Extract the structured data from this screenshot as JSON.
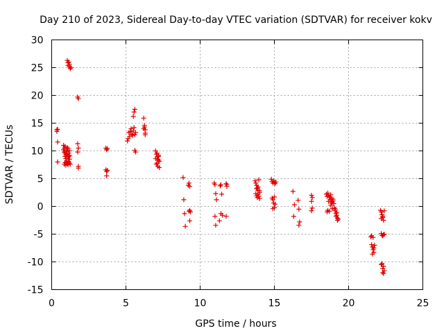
{
  "chart_data": {
    "type": "scatter",
    "title": "Day 210 of 2023, Sidereal Day-to-day VTEC variation (SDTVAR) for receiver kokv",
    "xlabel": "GPS time / hours",
    "ylabel": "SDTVAR / TECUs",
    "xlim": [
      0,
      25
    ],
    "ylim": [
      -15,
      30
    ],
    "xticks": [
      0,
      5,
      10,
      15,
      20,
      25
    ],
    "yticks": [
      -15,
      -10,
      -5,
      0,
      5,
      10,
      15,
      20,
      25,
      30
    ],
    "grid": true,
    "marker": "+",
    "color": "#e00000",
    "series": [
      {
        "name": "SDTVAR",
        "x": [
          0.35,
          0.35,
          0.4,
          0.4,
          0.4,
          0.8,
          0.8,
          0.85,
          0.85,
          0.9,
          0.9,
          0.9,
          0.95,
          0.95,
          1.0,
          1.0,
          1.0,
          1.05,
          1.05,
          1.1,
          1.1,
          1.1,
          1.15,
          1.15,
          1.2,
          1.2,
          1.2,
          0.85,
          0.9,
          0.95,
          1.0,
          1.05,
          1.1,
          1.15,
          1.2,
          1.25,
          1.05,
          1.1,
          1.1,
          1.15,
          1.2,
          1.2,
          1.25,
          1.3,
          1.75,
          1.8,
          1.75,
          1.8,
          1.75,
          1.8,
          1.8,
          3.65,
          3.7,
          3.75,
          3.65,
          3.7,
          3.75,
          3.7,
          5.1,
          5.15,
          5.2,
          5.25,
          5.3,
          5.35,
          5.4,
          5.45,
          5.5,
          5.55,
          5.6,
          5.65,
          5.5,
          5.55,
          5.6,
          5.6,
          5.65,
          6.2,
          6.25,
          6.3,
          6.25,
          6.3,
          6.2,
          6.3,
          7.0,
          7.05,
          7.1,
          7.15,
          7.2,
          7.25,
          7.0,
          7.1,
          7.2,
          7.05,
          7.15,
          7.25,
          7.1,
          7.2,
          8.85,
          8.9,
          8.95,
          9.0,
          9.2,
          9.25,
          9.3,
          9.25,
          9.3,
          9.35,
          9.3,
          10.95,
          11.0,
          11.05,
          11.1,
          11.0,
          11.05,
          11.35,
          11.4,
          11.45,
          11.3,
          11.5,
          11.4,
          11.75,
          11.8,
          11.75,
          11.8,
          13.7,
          13.75,
          13.8,
          13.85,
          13.9,
          13.95,
          14.0,
          13.75,
          13.8,
          13.85,
          13.9,
          13.95,
          14.0,
          13.8,
          13.9,
          14.0,
          14.8,
          14.85,
          14.9,
          14.95,
          15.0,
          15.05,
          15.1,
          14.85,
          14.9,
          14.95,
          15.0,
          15.05,
          14.9,
          15.0,
          16.25,
          16.3,
          16.35,
          16.6,
          16.65,
          16.7,
          16.65,
          17.5,
          17.55,
          17.5,
          17.55,
          17.5,
          18.5,
          18.55,
          18.6,
          18.65,
          18.7,
          18.75,
          18.8,
          18.85,
          18.9,
          18.95,
          19.0,
          18.6,
          18.7,
          18.8,
          18.9,
          18.65,
          18.75,
          18.85,
          18.55,
          18.95,
          19.05,
          19.1,
          19.15,
          19.2,
          19.25,
          19.3,
          19.1,
          19.2,
          19.15,
          19.25,
          21.5,
          21.55,
          21.6,
          21.65,
          21.7,
          21.75,
          21.6,
          21.7,
          21.55,
          21.65,
          22.15,
          22.2,
          22.25,
          22.3,
          22.35,
          22.4,
          22.2,
          22.3,
          22.25,
          22.35,
          22.2,
          22.3,
          22.4,
          22.25,
          22.35,
          22.2,
          22.3,
          22.4,
          22.3,
          22.35
        ],
        "y": [
          13.8,
          13.5,
          11.6,
          8.0,
          13.9,
          11.0,
          10.2,
          9.8,
          10.5,
          9.0,
          9.6,
          10.8,
          9.3,
          8.6,
          10.1,
          9.4,
          8.2,
          9.9,
          10.6,
          9.1,
          8.8,
          10.4,
          9.6,
          9.0,
          8.5,
          10.0,
          9.2,
          7.6,
          7.9,
          7.4,
          8.0,
          7.7,
          7.5,
          8.1,
          7.8,
          7.6,
          26.3,
          25.9,
          25.4,
          26.0,
          25.2,
          25.6,
          24.8,
          25.0,
          19.7,
          19.4,
          11.3,
          10.5,
          9.8,
          7.2,
          6.9,
          10.5,
          10.2,
          10.4,
          6.6,
          6.3,
          6.5,
          5.5,
          11.8,
          12.2,
          13.3,
          12.6,
          13.5,
          14.0,
          13.0,
          12.8,
          13.6,
          14.2,
          12.9,
          13.3,
          16.2,
          17.0,
          17.5,
          10.1,
          9.8,
          15.9,
          14.6,
          13.8,
          14.3,
          13.2,
          14.0,
          12.9,
          10.0,
          9.4,
          8.9,
          8.5,
          9.2,
          8.1,
          8.6,
          7.8,
          8.3,
          7.6,
          7.2,
          7.0,
          9.6,
          9.0,
          5.2,
          1.2,
          -1.3,
          -3.6,
          3.8,
          4.2,
          3.6,
          -0.9,
          -0.7,
          -1.0,
          -2.6,
          4.2,
          3.9,
          2.3,
          1.2,
          -1.8,
          -3.4,
          3.7,
          3.9,
          2.2,
          -2.6,
          -1.6,
          -1.3,
          4.1,
          3.6,
          -1.8,
          3.9,
          4.6,
          4.2,
          3.8,
          3.3,
          2.9,
          4.8,
          2.5,
          2.3,
          1.9,
          1.6,
          2.2,
          1.8,
          2.8,
          3.2,
          3.5,
          1.4,
          4.9,
          4.5,
          4.2,
          4.6,
          4.3,
          4.1,
          4.4,
          1.5,
          1.2,
          0.6,
          -0.2,
          0.4,
          -0.4,
          1.7,
          2.7,
          -1.8,
          0.3,
          1.1,
          -0.5,
          -2.8,
          -3.4,
          2.0,
          1.6,
          0.9,
          -0.3,
          -0.8,
          2.2,
          1.8,
          2.4,
          2.0,
          1.6,
          1.2,
          2.1,
          1.4,
          0.8,
          1.0,
          0.5,
          -0.7,
          -0.9,
          0.2,
          -0.4,
          0.9,
          1.7,
          0.6,
          -1.0,
          1.3,
          -0.3,
          -0.8,
          -1.3,
          -1.6,
          -2.1,
          -2.3,
          -0.5,
          -1.1,
          -1.8,
          -2.5,
          -5.5,
          -5.3,
          -7.3,
          -7.8,
          -8.3,
          -7.0,
          -8.6,
          -7.5,
          -6.9,
          -5.6,
          -0.7,
          -1.0,
          -1.5,
          -2.0,
          -2.5,
          -0.8,
          -2.2,
          -1.8,
          -5.2,
          -5.1,
          -4.9,
          -5.3,
          -5.0,
          -10.3,
          -10.8,
          -10.5,
          -11.2,
          -11.6,
          -11.9,
          -12.1
        ]
      }
    ]
  }
}
